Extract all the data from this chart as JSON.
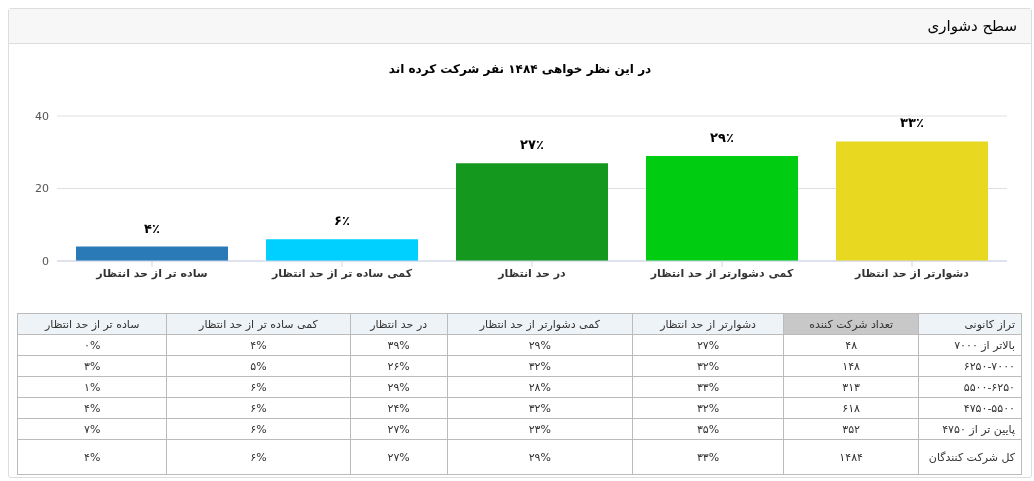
{
  "chart_data": [
    {
      "type": "bar",
      "title": "سطح دشواری",
      "subtitle": "در این نظر خواهی ۱۴۸۴ نفر شرکت کرده اند",
      "categories": [
        "ساده تر از حد انتظار",
        "کمی ساده تر از حد انتظار",
        "در حد انتظار",
        "کمی دشوارتر از حد انتظار",
        "دشوارتر از حد انتظار"
      ],
      "values": [
        4,
        6,
        27,
        29,
        33
      ],
      "colors": [
        "#2a7ab8",
        "#00d0ff",
        "#14991e",
        "#00cc12",
        "#e8d820"
      ],
      "value_labels": [
        "۴٪",
        "۶٪",
        "۲۷٪",
        "۲۹٪",
        "۳۳٪"
      ],
      "ylim": [
        0,
        40
      ],
      "yticks": [
        0,
        20,
        40
      ],
      "grid": "y",
      "legend": false
    },
    {
      "type": "other",
      "y2label": "تراز کانونی",
      "categories": [
        "ساده تر از حد انتظار",
        "کمی ساده تر از حد انتظار",
        "در حد انتظار",
        "کمی دشوارتر از حد انتظار",
        "دشوارتر از حد انتظار",
        "تعداد شرکت کننده"
      ],
      "y2_categories": [
        "بالاتر از ۷۰۰۰",
        "۶۲۵۰-۷۰۰۰",
        "۵۵۰۰-۶۲۵۰",
        "۴۷۵۰-۵۵۰۰",
        "پایین تر از ۴۷۵۰",
        "کل شرکت کنندگان"
      ],
      "cell_labels": [
        [
          "۰%",
          "۴%",
          "۳۹%",
          "۲۹%",
          "۲۷%",
          "۴۸"
        ],
        [
          "۳%",
          "۵%",
          "۲۶%",
          "۳۲%",
          "۳۲%",
          "۱۴۸"
        ],
        [
          "۱%",
          "۶%",
          "۲۹%",
          "۲۸%",
          "۳۳%",
          "۳۱۳"
        ],
        [
          "۴%",
          "۶%",
          "۲۴%",
          "۳۲%",
          "۳۲%",
          "۶۱۸"
        ],
        [
          "۷%",
          "۶%",
          "۲۷%",
          "۲۳%",
          "۳۵%",
          "۳۵۲"
        ],
        [
          "۴%",
          "۶%",
          "۲۷%",
          "۲۹%",
          "۳۳%",
          "۱۴۸۴"
        ]
      ]
    }
  ]
}
